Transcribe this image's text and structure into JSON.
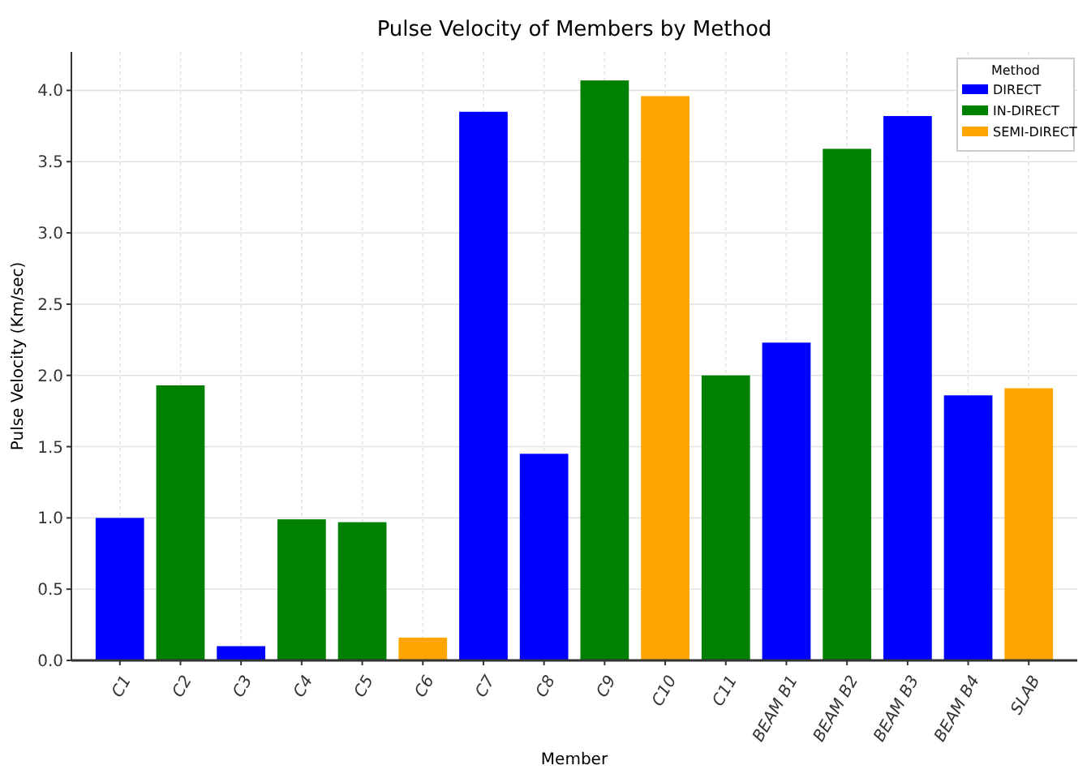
{
  "chart_data": {
    "type": "bar",
    "title": "Pulse Velocity of Members by Method",
    "xlabel": "Member",
    "ylabel": "Pulse Velocity (Km/sec)",
    "legend_title": "Method",
    "categories": [
      "C1",
      "C2",
      "C3",
      "C4",
      "C5",
      "C6",
      "C7",
      "C8",
      "C9",
      "C10",
      "C11",
      "BEAM B1",
      "BEAM B2",
      "BEAM B3",
      "BEAM B4",
      "SLAB"
    ],
    "series": [
      {
        "name": "DIRECT",
        "color": "#0000ff",
        "values": [
          1.0,
          null,
          0.1,
          null,
          null,
          null,
          3.85,
          1.45,
          null,
          null,
          null,
          2.23,
          null,
          3.82,
          1.86,
          null
        ]
      },
      {
        "name": "IN-DIRECT",
        "color": "#008000",
        "values": [
          null,
          1.93,
          null,
          0.99,
          0.97,
          null,
          null,
          null,
          4.07,
          null,
          2.0,
          null,
          3.59,
          null,
          null,
          null
        ]
      },
      {
        "name": "SEMI-DIRECT",
        "color": "#ffa500",
        "values": [
          null,
          null,
          null,
          null,
          null,
          0.16,
          null,
          null,
          null,
          3.96,
          null,
          null,
          null,
          null,
          null,
          1.91
        ]
      }
    ],
    "ylim": [
      0,
      4.27
    ],
    "yticks": [
      {
        "value": 0,
        "label": "0.0"
      },
      {
        "value": 0.5,
        "label": "0.5"
      },
      {
        "value": 1,
        "label": "1.0"
      },
      {
        "value": 1.5,
        "label": "1.5"
      },
      {
        "value": 2,
        "label": "2.0"
      },
      {
        "value": 2.5,
        "label": "2.5"
      },
      {
        "value": 3,
        "label": "3.0"
      },
      {
        "value": 3.5,
        "label": "3.5"
      },
      {
        "value": 4,
        "label": "4.0"
      }
    ],
    "grid": true,
    "legend": "top right"
  }
}
